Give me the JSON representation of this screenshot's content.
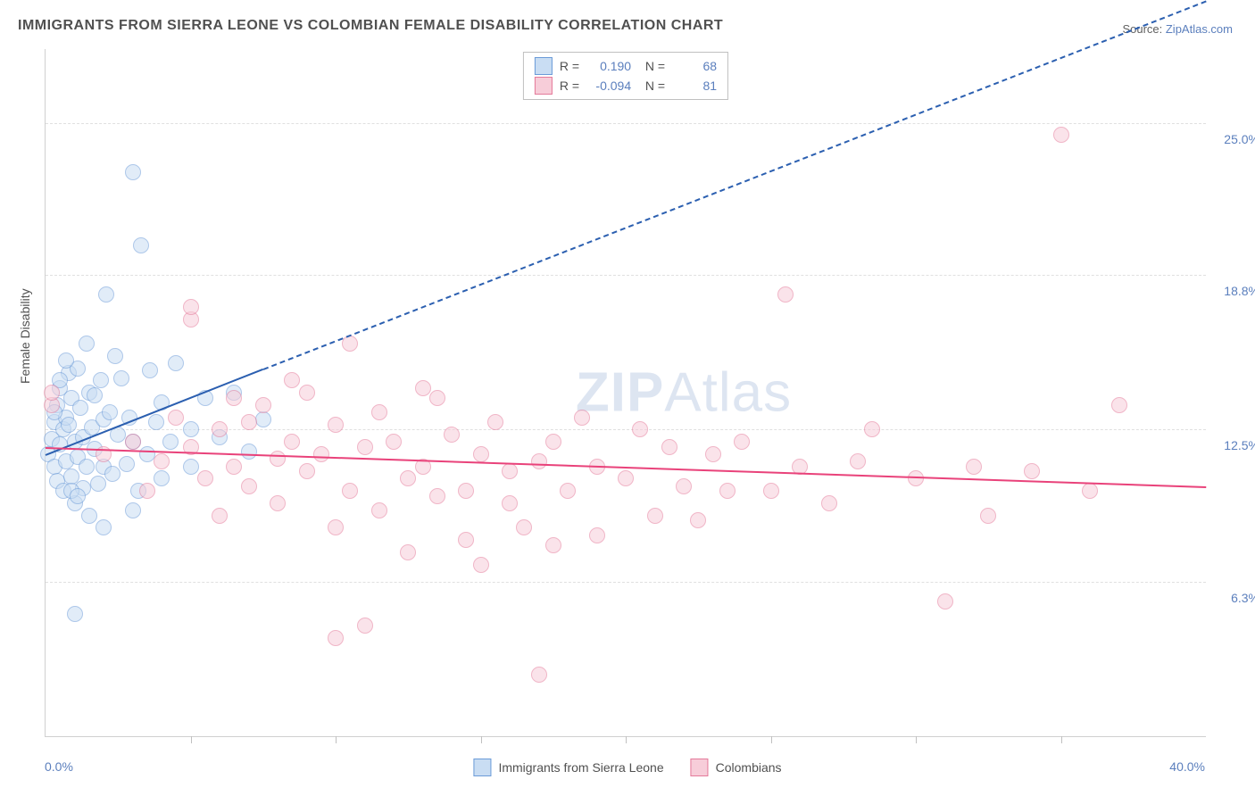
{
  "title": "IMMIGRANTS FROM SIERRA LEONE VS COLOMBIAN FEMALE DISABILITY CORRELATION CHART",
  "source_label": "Source: ",
  "source_value": "ZipAtlas.com",
  "watermark_bold": "ZIP",
  "watermark_rest": "Atlas",
  "chart": {
    "type": "scatter",
    "xlim": [
      0,
      40
    ],
    "ylim": [
      0,
      28
    ],
    "x_axis_min_label": "0.0%",
    "x_axis_max_label": "40.0%",
    "y_axis_label": "Female Disability",
    "y_ticks": [
      {
        "value": 6.3,
        "label": "6.3%"
      },
      {
        "value": 12.5,
        "label": "12.5%"
      },
      {
        "value": 18.8,
        "label": "18.8%"
      },
      {
        "value": 25.0,
        "label": "25.0%"
      }
    ],
    "x_tick_positions": [
      5,
      10,
      15,
      20,
      25,
      30,
      35
    ],
    "grid_color": "#e0e0e0",
    "background_color": "#ffffff",
    "marker_radius": 8,
    "marker_stroke_width": 1.5,
    "series": [
      {
        "name": "Immigrants from Sierra Leone",
        "fill": "#c9ddf3",
        "stroke": "#6b9bd8",
        "fill_opacity": 0.55,
        "R": "0.190",
        "N": "68",
        "trend": {
          "color": "#2b5fb0",
          "width": 2,
          "solid_from": [
            0.0,
            11.5
          ],
          "solid_to": [
            7.5,
            15.0
          ],
          "dashed_to": [
            40.0,
            30.0
          ]
        },
        "points": [
          [
            0.1,
            11.5
          ],
          [
            0.2,
            12.1
          ],
          [
            0.3,
            11.0
          ],
          [
            0.3,
            12.8
          ],
          [
            0.4,
            13.5
          ],
          [
            0.4,
            10.4
          ],
          [
            0.5,
            11.9
          ],
          [
            0.5,
            14.2
          ],
          [
            0.6,
            12.5
          ],
          [
            0.6,
            10.0
          ],
          [
            0.7,
            13.0
          ],
          [
            0.7,
            11.2
          ],
          [
            0.8,
            12.7
          ],
          [
            0.8,
            14.8
          ],
          [
            0.9,
            13.8
          ],
          [
            0.9,
            10.6
          ],
          [
            1.0,
            12.0
          ],
          [
            1.0,
            9.5
          ],
          [
            1.1,
            15.0
          ],
          [
            1.1,
            11.4
          ],
          [
            1.2,
            13.4
          ],
          [
            1.3,
            12.2
          ],
          [
            1.3,
            10.1
          ],
          [
            1.4,
            11.0
          ],
          [
            1.5,
            14.0
          ],
          [
            1.5,
            9.0
          ],
          [
            1.6,
            12.6
          ],
          [
            1.7,
            11.7
          ],
          [
            1.7,
            13.9
          ],
          [
            1.8,
            10.3
          ],
          [
            1.9,
            14.5
          ],
          [
            2.0,
            11.0
          ],
          [
            2.0,
            12.9
          ],
          [
            2.1,
            18.0
          ],
          [
            2.2,
            13.2
          ],
          [
            2.3,
            10.7
          ],
          [
            2.4,
            15.5
          ],
          [
            2.5,
            12.3
          ],
          [
            2.6,
            14.6
          ],
          [
            2.8,
            11.1
          ],
          [
            2.9,
            13.0
          ],
          [
            3.0,
            9.2
          ],
          [
            3.0,
            12.0
          ],
          [
            3.2,
            10.0
          ],
          [
            3.3,
            20.0
          ],
          [
            3.0,
            23.0
          ],
          [
            3.5,
            11.5
          ],
          [
            3.6,
            14.9
          ],
          [
            3.8,
            12.8
          ],
          [
            4.0,
            10.5
          ],
          [
            4.0,
            13.6
          ],
          [
            4.3,
            12.0
          ],
          [
            4.5,
            15.2
          ],
          [
            1.0,
            5.0
          ],
          [
            5.0,
            12.5
          ],
          [
            5.0,
            11.0
          ],
          [
            5.5,
            13.8
          ],
          [
            6.0,
            12.2
          ],
          [
            6.5,
            14.0
          ],
          [
            7.0,
            11.6
          ],
          [
            7.5,
            12.9
          ],
          [
            2.0,
            8.5
          ],
          [
            0.5,
            14.5
          ],
          [
            0.7,
            15.3
          ],
          [
            1.4,
            16.0
          ],
          [
            0.3,
            13.2
          ],
          [
            0.9,
            10.0
          ],
          [
            1.1,
            9.8
          ]
        ]
      },
      {
        "name": "Colombians",
        "fill": "#f7cdd9",
        "stroke": "#e47a9a",
        "fill_opacity": 0.55,
        "R": "-0.094",
        "N": "81",
        "trend": {
          "color": "#e9427a",
          "width": 2,
          "solid_from": [
            0.0,
            11.8
          ],
          "solid_to": [
            40.0,
            10.2
          ],
          "dashed_to": null
        },
        "points": [
          [
            0.2,
            13.5
          ],
          [
            2.0,
            11.5
          ],
          [
            3.0,
            12.0
          ],
          [
            3.5,
            10.0
          ],
          [
            4.0,
            11.2
          ],
          [
            4.5,
            13.0
          ],
          [
            5.0,
            11.8
          ],
          [
            5.0,
            17.0
          ],
          [
            5.5,
            10.5
          ],
          [
            6.0,
            12.5
          ],
          [
            6.0,
            9.0
          ],
          [
            6.5,
            11.0
          ],
          [
            7.0,
            12.8
          ],
          [
            7.0,
            10.2
          ],
          [
            7.5,
            13.5
          ],
          [
            8.0,
            11.3
          ],
          [
            8.0,
            9.5
          ],
          [
            8.5,
            12.0
          ],
          [
            9.0,
            10.8
          ],
          [
            9.0,
            14.0
          ],
          [
            9.5,
            11.5
          ],
          [
            10.0,
            12.7
          ],
          [
            10.0,
            8.5
          ],
          [
            10.5,
            16.0
          ],
          [
            10.5,
            10.0
          ],
          [
            11.0,
            11.8
          ],
          [
            11.5,
            13.2
          ],
          [
            11.5,
            9.2
          ],
          [
            12.0,
            12.0
          ],
          [
            12.5,
            10.5
          ],
          [
            12.5,
            7.5
          ],
          [
            13.0,
            11.0
          ],
          [
            13.5,
            13.8
          ],
          [
            13.5,
            9.8
          ],
          [
            14.0,
            12.3
          ],
          [
            14.5,
            10.0
          ],
          [
            14.5,
            8.0
          ],
          [
            15.0,
            11.5
          ],
          [
            15.5,
            12.8
          ],
          [
            16.0,
            9.5
          ],
          [
            16.0,
            10.8
          ],
          [
            16.5,
            8.5
          ],
          [
            17.0,
            11.2
          ],
          [
            17.5,
            12.0
          ],
          [
            17.5,
            7.8
          ],
          [
            18.0,
            10.0
          ],
          [
            18.5,
            13.0
          ],
          [
            19.0,
            11.0
          ],
          [
            19.0,
            8.2
          ],
          [
            20.0,
            10.5
          ],
          [
            20.5,
            12.5
          ],
          [
            21.0,
            9.0
          ],
          [
            21.5,
            11.8
          ],
          [
            22.0,
            10.2
          ],
          [
            22.5,
            8.8
          ],
          [
            23.0,
            11.5
          ],
          [
            24.0,
            12.0
          ],
          [
            25.0,
            10.0
          ],
          [
            25.5,
            18.0
          ],
          [
            26.0,
            11.0
          ],
          [
            27.0,
            9.5
          ],
          [
            28.0,
            11.2
          ],
          [
            30.0,
            10.5
          ],
          [
            31.0,
            5.5
          ],
          [
            32.0,
            11.0
          ],
          [
            32.5,
            9.0
          ],
          [
            34.0,
            10.8
          ],
          [
            35.0,
            24.5
          ],
          [
            36.0,
            10.0
          ],
          [
            37.0,
            13.5
          ],
          [
            10.0,
            4.0
          ],
          [
            11.0,
            4.5
          ],
          [
            17.0,
            2.5
          ],
          [
            5.0,
            17.5
          ],
          [
            6.5,
            13.8
          ],
          [
            8.5,
            14.5
          ],
          [
            13.0,
            14.2
          ],
          [
            15.0,
            7.0
          ],
          [
            23.5,
            10.0
          ],
          [
            28.5,
            12.5
          ],
          [
            0.2,
            14.0
          ]
        ]
      }
    ],
    "legend": {
      "stats_labels": {
        "R": "R =",
        "N": "N ="
      }
    }
  }
}
